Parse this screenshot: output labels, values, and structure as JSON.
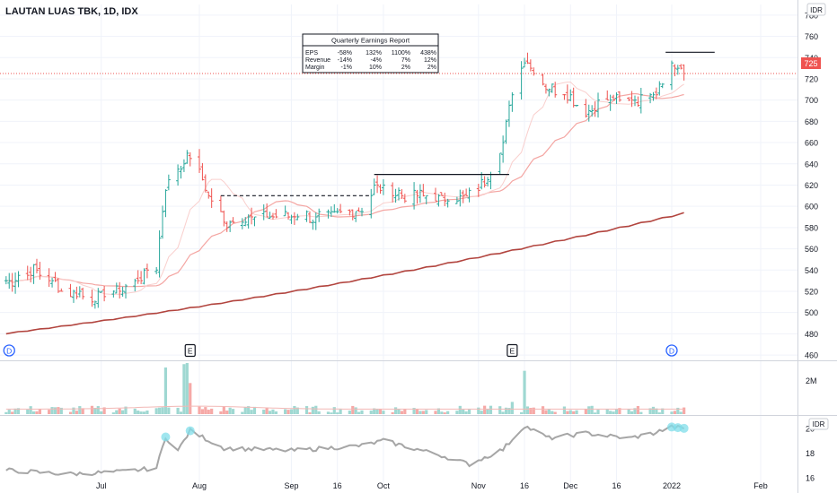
{
  "header": {
    "symbol_title": "LAUTAN LUAS TBK, 1D, IDX",
    "currency_label": "IDR",
    "currency_label_lower": "IDR"
  },
  "earnings_table": {
    "title": "Quarterly Earnings Report",
    "rows": [
      {
        "label": "EPS",
        "values": [
          "-58%",
          "132%",
          "1100%",
          "438%"
        ]
      },
      {
        "label": "Revenue",
        "values": [
          "-14%",
          "-4%",
          "7%",
          "12%"
        ]
      },
      {
        "label": "Margin",
        "values": [
          "-1%",
          "10%",
          "2%",
          "2%"
        ]
      }
    ]
  },
  "last_price": "725",
  "markers": [
    {
      "type": "D",
      "label": "D",
      "date": "2021-06-01",
      "color": "#2962ff"
    },
    {
      "type": "E",
      "label": "E",
      "date": "2021-07-30",
      "color": "#131722"
    },
    {
      "type": "E",
      "label": "E",
      "date": "2021-11-12",
      "color": "#131722"
    },
    {
      "type": "D",
      "label": "D",
      "date": "2022-01-03",
      "color": "#2962ff"
    }
  ],
  "colors": {
    "up": "#26a69a",
    "down": "#ef5350",
    "ma_slow": "#b2453f",
    "ma_mid": "#f4a6a3",
    "ma_fast": "#f9cfcd",
    "rs_line": "#a6a6a6",
    "rs_highlight": "#80deea",
    "price_badge": "#ef5350"
  },
  "chart_data": [
    {
      "type": "ohlc",
      "title": "LAUTAN LUAS TBK, 1D, IDX",
      "x_axis": {
        "tick_labels": [
          "Jul",
          "Aug",
          "Sep",
          "16",
          "Oct",
          "Nov",
          "16",
          "Dec",
          "16",
          "2022",
          "Feb"
        ],
        "tick_dates": [
          "2021-07-01",
          "2021-08-02",
          "2021-09-01",
          "2021-09-16",
          "2021-10-01",
          "2021-11-01",
          "2021-11-16",
          "2021-12-01",
          "2021-12-16",
          "2022-01-03",
          "2022-02-01"
        ],
        "range": [
          "2021-05-29",
          "2022-02-13"
        ]
      },
      "y_axis": {
        "tick_labels": [
          "460",
          "480",
          "500",
          "520",
          "540",
          "560",
          "580",
          "600",
          "620",
          "640",
          "660",
          "680",
          "700",
          "720",
          "740",
          "760",
          "780"
        ],
        "range": [
          455,
          790
        ],
        "unit": "IDR"
      },
      "anchors": [
        {
          "date": "2021-06-01",
          "close": 530
        },
        {
          "date": "2021-06-10",
          "close": 540
        },
        {
          "date": "2021-06-18",
          "close": 522
        },
        {
          "date": "2021-06-28",
          "close": 515
        },
        {
          "date": "2021-07-08",
          "close": 522
        },
        {
          "date": "2021-07-19",
          "close": 545
        },
        {
          "date": "2021-07-22",
          "close": 620
        },
        {
          "date": "2021-07-30",
          "close": 650
        },
        {
          "date": "2021-08-05",
          "close": 610
        },
        {
          "date": "2021-08-10",
          "close": 585
        },
        {
          "date": "2021-08-20",
          "close": 590
        },
        {
          "date": "2021-09-01",
          "close": 592
        },
        {
          "date": "2021-09-13",
          "close": 588
        },
        {
          "date": "2021-09-24",
          "close": 600
        },
        {
          "date": "2021-09-29",
          "close": 620
        },
        {
          "date": "2021-10-08",
          "close": 610
        },
        {
          "date": "2021-10-20",
          "close": 608
        },
        {
          "date": "2021-10-27",
          "close": 608
        },
        {
          "date": "2021-11-03",
          "close": 625
        },
        {
          "date": "2021-11-09",
          "close": 660
        },
        {
          "date": "2021-11-12",
          "close": 710
        },
        {
          "date": "2021-11-16",
          "close": 740
        },
        {
          "date": "2021-11-22",
          "close": 715
        },
        {
          "date": "2021-11-30",
          "close": 705
        },
        {
          "date": "2021-12-06",
          "close": 690
        },
        {
          "date": "2021-12-13",
          "close": 700
        },
        {
          "date": "2021-12-22",
          "close": 700
        },
        {
          "date": "2021-12-29",
          "close": 710
        },
        {
          "date": "2022-01-03",
          "close": 735
        },
        {
          "date": "2022-01-07",
          "close": 725
        }
      ],
      "ma_200_end": 594,
      "ma_50_end": 686,
      "ma_21_end": 700,
      "resistance_lines": [
        {
          "from": "2021-08-09",
          "to": "2021-09-27",
          "price": 610,
          "style": "dashed"
        },
        {
          "from": "2021-09-28",
          "to": "2021-11-11",
          "price": 630,
          "style": "solid"
        },
        {
          "from": "2022-01-01",
          "to": "2022-01-17",
          "price": 745,
          "style": "solid"
        }
      ],
      "last_price": 725
    },
    {
      "type": "bar",
      "name": "Volume",
      "y_axis": {
        "tick_labels": [
          "2M"
        ]
      },
      "spikes": [
        {
          "date": "2021-07-22",
          "value": 4.2
        },
        {
          "date": "2021-07-28",
          "value": 4.5
        },
        {
          "date": "2021-07-29",
          "value": 4.6
        },
        {
          "date": "2021-07-30",
          "value": 2.8
        },
        {
          "date": "2021-11-12",
          "value": 1.1
        },
        {
          "date": "2021-11-16",
          "value": 3.9
        }
      ],
      "baseline_value": 0.45
    },
    {
      "type": "line",
      "name": "Relative Strength",
      "y_axis": {
        "tick_labels": [
          "16",
          "18",
          "20"
        ],
        "range": [
          15.5,
          21
        ]
      },
      "anchors": [
        {
          "date": "2021-06-01",
          "value": 16.6
        },
        {
          "date": "2021-06-20",
          "value": 16.3
        },
        {
          "date": "2021-07-08",
          "value": 16.5
        },
        {
          "date": "2021-07-19",
          "value": 16.8
        },
        {
          "date": "2021-07-22",
          "value": 19.3
        },
        {
          "date": "2021-07-26",
          "value": 18.2
        },
        {
          "date": "2021-07-30",
          "value": 19.8
        },
        {
          "date": "2021-08-10",
          "value": 18.4
        },
        {
          "date": "2021-09-01",
          "value": 18.2
        },
        {
          "date": "2021-09-24",
          "value": 18.6
        },
        {
          "date": "2021-10-01",
          "value": 19.0
        },
        {
          "date": "2021-10-20",
          "value": 17.8
        },
        {
          "date": "2021-10-29",
          "value": 17.1
        },
        {
          "date": "2021-11-09",
          "value": 18.3
        },
        {
          "date": "2021-11-16",
          "value": 20.2
        },
        {
          "date": "2021-11-24",
          "value": 19.2
        },
        {
          "date": "2021-12-06",
          "value": 19.6
        },
        {
          "date": "2021-12-20",
          "value": 19.2
        },
        {
          "date": "2021-12-28",
          "value": 19.6
        },
        {
          "date": "2022-01-03",
          "value": 20.1
        },
        {
          "date": "2022-01-07",
          "value": 20.0
        }
      ],
      "highlights": [
        "2021-07-22",
        "2021-07-30",
        "2022-01-03",
        "2022-01-05",
        "2022-01-07"
      ]
    }
  ]
}
